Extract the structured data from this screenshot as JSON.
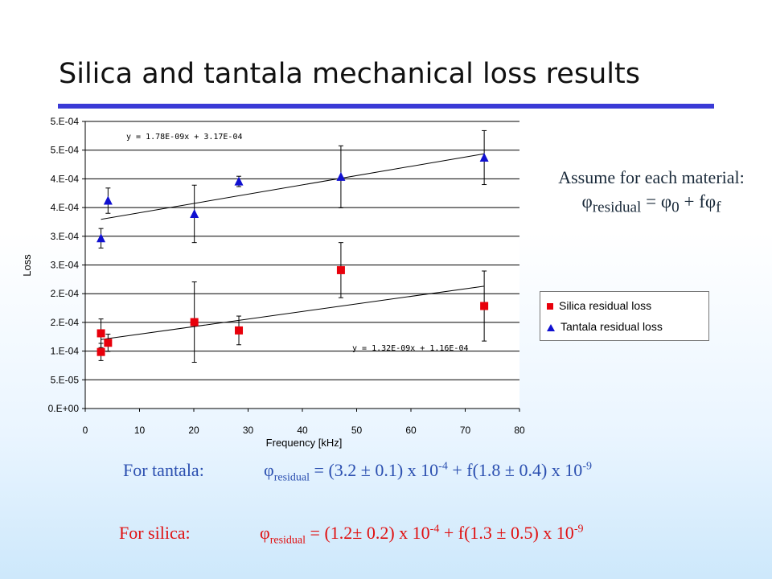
{
  "slide": {
    "title": "Silica and tantala mechanical loss results"
  },
  "annotation": {
    "line1": "Assume for each material:",
    "phi": "φ",
    "sub_residual": "residual",
    "eq": " = ",
    "phi0": "φ",
    "sub0": "0",
    "plus_f": " + f",
    "phif": "φ",
    "subf": "f"
  },
  "legend": {
    "items": [
      {
        "label": "Silica residual loss",
        "color": "#e8000b",
        "marker": "square"
      },
      {
        "label": "Tantala residual loss",
        "color": "#1010d0",
        "marker": "triangle"
      }
    ]
  },
  "formulas": {
    "tantala": {
      "label": "For tantala:",
      "phi": "φ",
      "sub": "residual",
      "text1": " = (3.2 ± 0.1) x 10",
      "exp1": "-4",
      "text2": " + f(1.8 ± 0.4) x 10",
      "exp2": "-9",
      "color": "#2b4fb0"
    },
    "silica": {
      "label": "For silica:",
      "phi": "φ",
      "sub": "residual",
      "text1": " = (1.2± 0.2) x 10",
      "exp1": "-4",
      "text2": " + f(1.3 ± 0.5) x 10",
      "exp2": "-9",
      "color": "#e01010"
    }
  },
  "chart_data": {
    "type": "scatter",
    "xlabel": "Frequency [kHz]",
    "ylabel": "Loss",
    "xlim": [
      0,
      80
    ],
    "ylim": [
      0,
      0.0005
    ],
    "x_ticks": [
      0,
      10,
      20,
      30,
      40,
      50,
      60,
      70,
      80
    ],
    "x_tick_labels": [
      "0",
      "10",
      "20",
      "30",
      "40",
      "50",
      "60",
      "70",
      "80"
    ],
    "y_ticks": [
      0,
      5e-05,
      0.0001,
      0.00015,
      0.0002,
      0.00025,
      0.0003,
      0.00035,
      0.0004,
      0.00045,
      0.0005
    ],
    "y_tick_labels": [
      "0.E+00",
      "5.E-05",
      "1.E-04",
      "2.E-04",
      "2.E-04",
      "3.E-04",
      "3.E-04",
      "4.E-04",
      "4.E-04",
      "5.E-04",
      "5.E-04"
    ],
    "grid": "horizontal",
    "legend_position": "right",
    "series": [
      {
        "name": "Silica residual loss",
        "marker": "square",
        "color": "#e8000b",
        "points": [
          {
            "x": 2.9,
            "y": 0.000131,
            "err": 2.5e-05
          },
          {
            "x": 2.9,
            "y": 9.85e-05,
            "err": 1.5e-05
          },
          {
            "x": 4.2,
            "y": 0.0001145,
            "err": 1.5e-05
          },
          {
            "x": 20.1,
            "y": 0.0001505,
            "err": 7e-05
          },
          {
            "x": 28.3,
            "y": 0.000136,
            "err": 2.5e-05
          },
          {
            "x": 47.1,
            "y": 0.000241,
            "err": 4.8e-05
          },
          {
            "x": 73.5,
            "y": 0.0001785,
            "err": 6.1e-05
          }
        ],
        "fit": {
          "label": "y = 1.32E-09x + 1.16E-04",
          "x_range": [
            2.9,
            73.5
          ]
        }
      },
      {
        "name": "Tantala residual loss",
        "marker": "triangle",
        "color": "#1010d0",
        "points": [
          {
            "x": 2.9,
            "y": 0.0002965,
            "err": 1.7e-05
          },
          {
            "x": 4.2,
            "y": 0.000362,
            "err": 2.2e-05
          },
          {
            "x": 20.1,
            "y": 0.000339,
            "err": 5e-05
          },
          {
            "x": 28.3,
            "y": 0.0003955,
            "err": 9e-06
          },
          {
            "x": 47.1,
            "y": 0.0004035,
            "err": 5.4e-05
          },
          {
            "x": 73.5,
            "y": 0.000437,
            "err": 4.7e-05
          }
        ],
        "fit": {
          "label": "y = 1.78E-09x + 3.17E-04",
          "x_range": [
            2.9,
            73.5
          ]
        }
      }
    ]
  }
}
